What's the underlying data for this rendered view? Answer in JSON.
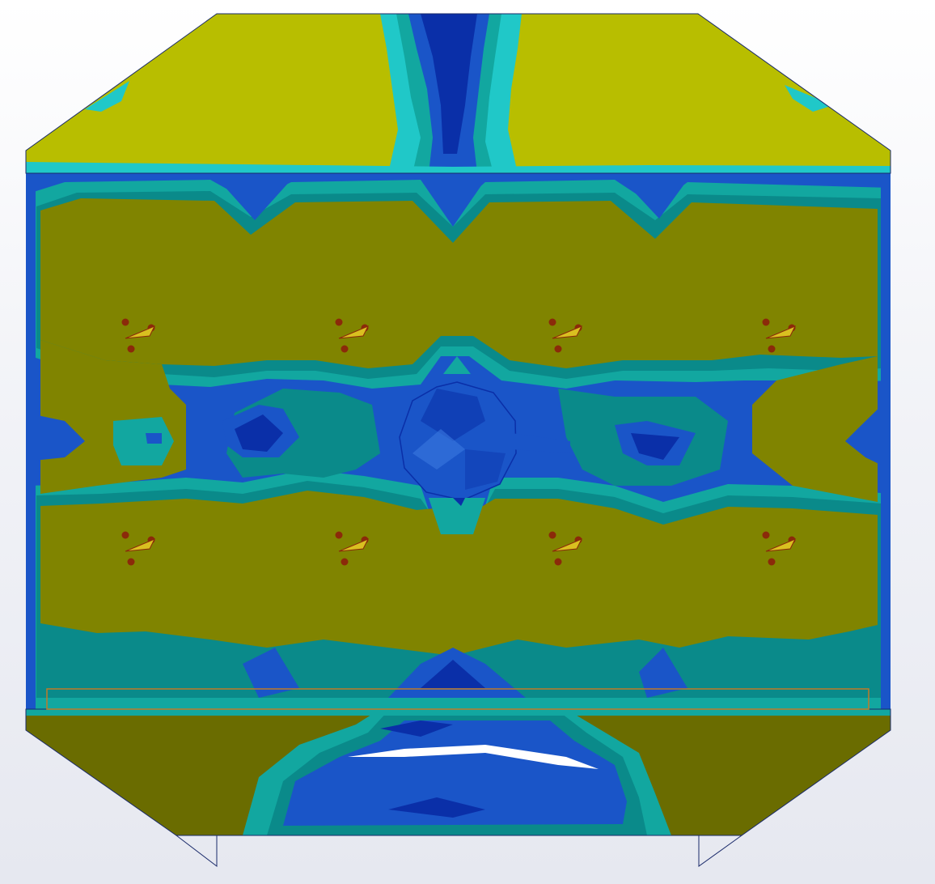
{
  "viewport": {
    "label": "",
    "colors": {
      "background": "#eef0f5",
      "yellow_top": "#b8be00",
      "olive": "#808400",
      "olive_dark": "#6a6c00",
      "teal": "#12a7a0",
      "teal_dark": "#0a8a8a",
      "cyan": "#20c8c8",
      "blue": "#1a55c8",
      "blue_dark": "#0a2fa8",
      "outline": "#1a2a6a",
      "point_marker": "#8b2a0a",
      "load_arrow": "#d9c020",
      "selection_box": "#c07a28"
    }
  },
  "model": {
    "top_panel": "stress-contour-top-face",
    "front_panel": "stress-contour-front-face",
    "bottom_panel": "stress-contour-bottom-face",
    "center_feature": "center-bolt-hole",
    "load_markers": [
      "load-marker",
      "load-marker",
      "load-marker",
      "load-marker",
      "load-marker",
      "load-marker",
      "load-marker",
      "load-marker"
    ],
    "icon_names": [
      "point-marker-icon",
      "load-arrow-icon"
    ]
  }
}
